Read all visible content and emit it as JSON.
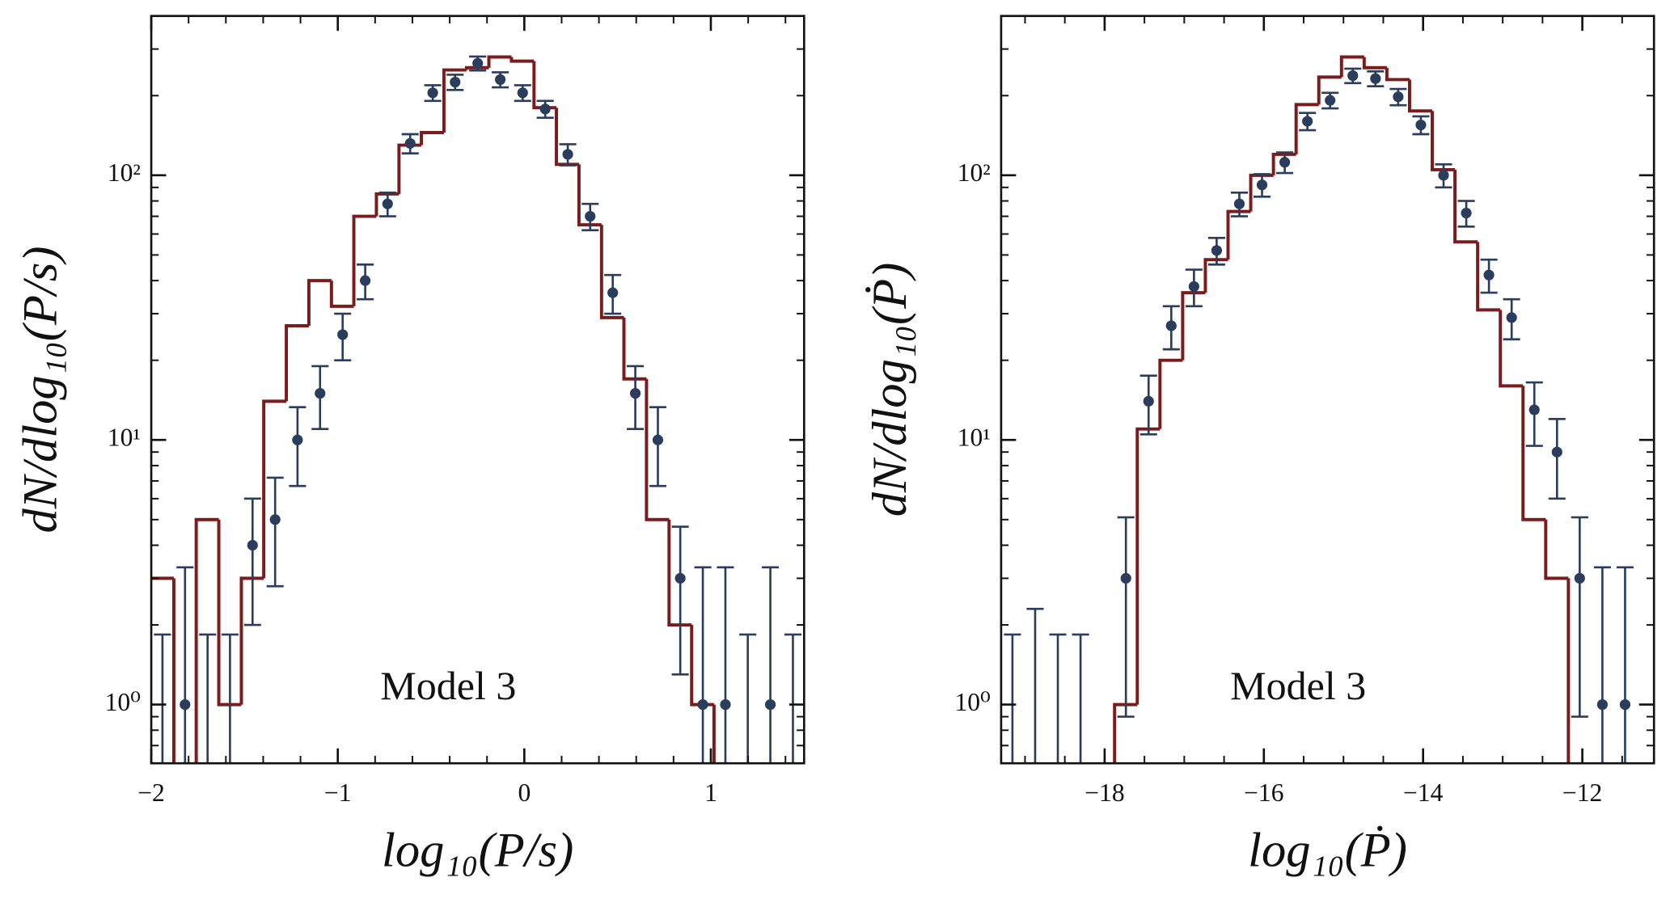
{
  "chart_data": [
    {
      "type": "histogram",
      "xlabel": "log₁₀(P/s)",
      "ylabel": "dN/dlog₁₀(P/s)",
      "annotation": "Model 3",
      "annotation_color": "#7b1c1c",
      "bins": [
        -2,
        -1.879,
        -1.759,
        -1.638,
        -1.517,
        -1.397,
        -1.276,
        -1.155,
        -1.034,
        -0.914,
        -0.793,
        -0.672,
        -0.552,
        -0.431,
        -0.31,
        -0.19,
        -0.069,
        0.052,
        0.172,
        0.293,
        0.414,
        0.534,
        0.655,
        0.776,
        0.897,
        1.017,
        1.138,
        1.259,
        1.379,
        1.5
      ],
      "counts": [
        3,
        0,
        5,
        1,
        3,
        14,
        27,
        40,
        32,
        70,
        85,
        130,
        145,
        250,
        255,
        280,
        270,
        180,
        110,
        65,
        29,
        17,
        5,
        2,
        1,
        0,
        0,
        0,
        0
      ],
      "color": "#7b1c1c",
      "points": {
        "color": "#2b3d5c",
        "x": [
          -1.94,
          -1.819,
          -1.698,
          -1.578,
          -1.457,
          -1.336,
          -1.216,
          -1.095,
          -0.974,
          -0.853,
          -0.733,
          -0.612,
          -0.491,
          -0.371,
          -0.25,
          -0.129,
          -0.009,
          0.112,
          0.233,
          0.353,
          0.474,
          0.595,
          0.716,
          0.836,
          0.957,
          1.078,
          1.198,
          1.319,
          1.44
        ],
        "values": [
          0,
          1,
          0,
          0,
          4,
          5,
          10,
          15,
          25,
          40,
          78,
          132,
          205,
          225,
          265,
          230,
          205,
          178,
          120,
          70,
          36,
          15,
          10,
          3,
          1,
          1,
          0,
          1,
          0
        ],
        "errors": [
          1.84,
          2.3,
          1.84,
          1.84,
          2,
          2.2,
          3.3,
          4,
          5,
          6,
          8,
          11,
          14,
          15,
          16,
          15,
          14,
          13,
          11,
          8,
          6,
          4,
          3.3,
          1.7,
          2.3,
          2.3,
          1.84,
          2.3,
          1.84
        ]
      },
      "xlim": [
        -2,
        1.5
      ],
      "ylim": [
        0.6,
        400
      ],
      "log_y": true,
      "minor_ticks": true,
      "xticks": [
        {
          "value": -2,
          "label": "−2"
        },
        {
          "value": -1,
          "label": "−1"
        },
        0,
        1
      ],
      "yticks": [
        {
          "value": 1,
          "label": "10⁰"
        },
        {
          "value": 10,
          "label": "10¹"
        },
        {
          "value": 100,
          "label": "10²"
        }
      ]
    },
    {
      "type": "histogram",
      "xlabel": "log₁₀(Ṗ)",
      "ylabel": "dN/dlog₁₀(Ṗ)",
      "annotation": "Model 3",
      "annotation_color": "#7b1c1c",
      "bins": [
        -19.3,
        -19.015,
        -18.73,
        -18.445,
        -18.16,
        -17.875,
        -17.59,
        -17.305,
        -17.02,
        -16.735,
        -16.45,
        -16.165,
        -15.88,
        -15.595,
        -15.31,
        -15.025,
        -14.74,
        -14.455,
        -14.17,
        -13.885,
        -13.6,
        -13.315,
        -13.03,
        -12.745,
        -12.46,
        -12.175,
        -11.89,
        -11.605,
        -11.32
      ],
      "counts": [
        0,
        0,
        0,
        0,
        0,
        1,
        11,
        20,
        36,
        48,
        73,
        100,
        120,
        185,
        235,
        280,
        255,
        230,
        175,
        105,
        56,
        31,
        16,
        5,
        3,
        0,
        0,
        0
      ],
      "color": "#7b1c1c",
      "points": {
        "color": "#2b3d5c",
        "x": [
          -19.158,
          -18.873,
          -18.588,
          -18.303,
          -18.018,
          -17.733,
          -17.448,
          -17.163,
          -16.878,
          -16.593,
          -16.308,
          -16.023,
          -15.738,
          -15.453,
          -15.168,
          -14.883,
          -14.598,
          -14.313,
          -14.028,
          -13.743,
          -13.458,
          -13.173,
          -12.888,
          -12.603,
          -12.318,
          -12.033,
          -11.748,
          -11.463
        ],
        "values": [
          0,
          0,
          0,
          0,
          null,
          3,
          14,
          27,
          38,
          52,
          78,
          92,
          112,
          160,
          192,
          238,
          232,
          198,
          155,
          100,
          72,
          42,
          29,
          13,
          9,
          3,
          1,
          1
        ],
        "errors": [
          1.84,
          2.3,
          1.84,
          1.84,
          null,
          2.1,
          3.5,
          5,
          6,
          6,
          8,
          9,
          10,
          12,
          13,
          15,
          15,
          14,
          12,
          10,
          8,
          6,
          5,
          3.5,
          3,
          2.1,
          2.3,
          2.3
        ]
      },
      "xlim": [
        -19.3,
        -11.1
      ],
      "ylim": [
        0.6,
        400
      ],
      "log_y": true,
      "minor_ticks": true,
      "xticks": [
        {
          "value": -18,
          "label": "−18"
        },
        {
          "value": -16,
          "label": "−16"
        },
        {
          "value": -14,
          "label": "−14"
        },
        {
          "value": -12,
          "label": "−12"
        }
      ],
      "yticks": [
        {
          "value": 1,
          "label": "10⁰"
        },
        {
          "value": 10,
          "label": "10¹"
        },
        {
          "value": 100,
          "label": "10²"
        }
      ]
    }
  ]
}
